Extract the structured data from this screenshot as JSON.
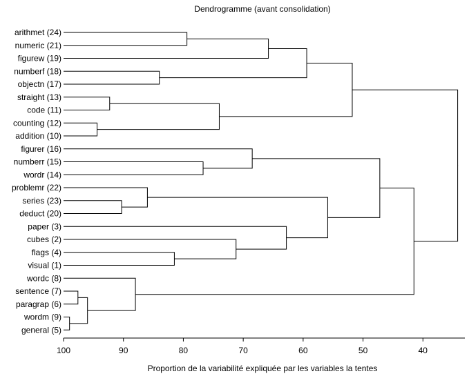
{
  "chart_data": {
    "type": "dendrogram",
    "title": "Dendrogramme (avant consolidation)",
    "xlabel": "Proportion de la variabilité expliquée par les variables la tentes",
    "x_range": [
      100,
      33
    ],
    "x_ticks": [
      100,
      90,
      80,
      70,
      60,
      50,
      40
    ],
    "x_tick_labels": [
      "100",
      "90",
      "80",
      "70",
      "60",
      "50",
      "40"
    ],
    "leaves": [
      {
        "label": "arithmet (24)"
      },
      {
        "label": "numeric (21)"
      },
      {
        "label": "figurew (19)"
      },
      {
        "label": "numberf  (18)"
      },
      {
        "label": "objectn (17)"
      },
      {
        "label": "straight (13)"
      },
      {
        "label": "code (11)"
      },
      {
        "label": "counting (12)"
      },
      {
        "label": "addition (10)"
      },
      {
        "label": "figurer (16)"
      },
      {
        "label": "numberr (15)"
      },
      {
        "label": "wordr (14)"
      },
      {
        "label": "problemr (22)"
      },
      {
        "label": "series (23)"
      },
      {
        "label": "deduct (20)"
      },
      {
        "label": "paper (3)"
      },
      {
        "label": "cubes (2)"
      },
      {
        "label": "flags (4)"
      },
      {
        "label": "visual (1)"
      },
      {
        "label": "wordc (8)"
      },
      {
        "label": "sentence (7)"
      },
      {
        "label": "paragrap (6)"
      },
      {
        "label": "wordm (9)"
      },
      {
        "label": "general (5)"
      }
    ],
    "merges": [
      {
        "id": "m1",
        "left": 0,
        "right": 1,
        "height": 79.4
      },
      {
        "id": "m2",
        "left": "m1",
        "right": 2,
        "height": 65.8
      },
      {
        "id": "m3",
        "left": 3,
        "right": 4,
        "height": 84.0
      },
      {
        "id": "m4",
        "left": "m2",
        "right": "m3",
        "height": 59.4
      },
      {
        "id": "m5",
        "left": 5,
        "right": 6,
        "height": 92.3
      },
      {
        "id": "m6",
        "left": 7,
        "right": 8,
        "height": 94.4
      },
      {
        "id": "m7",
        "left": "m5",
        "right": "m6",
        "height": 74.0
      },
      {
        "id": "m8",
        "left": "m4",
        "right": "m7",
        "height": 51.8
      },
      {
        "id": "m9",
        "left": 10,
        "right": 11,
        "height": 76.7
      },
      {
        "id": "m10",
        "left": 9,
        "right": "m9",
        "height": 68.5
      },
      {
        "id": "m11",
        "left": 13,
        "right": 14,
        "height": 90.3
      },
      {
        "id": "m12",
        "left": 12,
        "right": "m11",
        "height": 86.0
      },
      {
        "id": "m13",
        "left": 17,
        "right": 18,
        "height": 81.5
      },
      {
        "id": "m14",
        "left": 16,
        "right": "m13",
        "height": 71.2
      },
      {
        "id": "m15",
        "left": 15,
        "right": "m14",
        "height": 62.8
      },
      {
        "id": "m16",
        "left": "m12",
        "right": "m15",
        "height": 55.9
      },
      {
        "id": "m17",
        "left": "m10",
        "right": "m16",
        "height": 47.2
      },
      {
        "id": "m18",
        "left": 20,
        "right": 21,
        "height": 97.6
      },
      {
        "id": "m19",
        "left": 22,
        "right": 23,
        "height": 99.0
      },
      {
        "id": "m20",
        "left": "m18",
        "right": "m19",
        "height": 96.0
      },
      {
        "id": "m21",
        "left": 19,
        "right": "m20",
        "height": 88.0
      },
      {
        "id": "m22",
        "left": "m17",
        "right": "m21",
        "height": 41.5
      },
      {
        "id": "m23",
        "left": "m8",
        "right": "m22",
        "height": 34.2
      }
    ]
  }
}
